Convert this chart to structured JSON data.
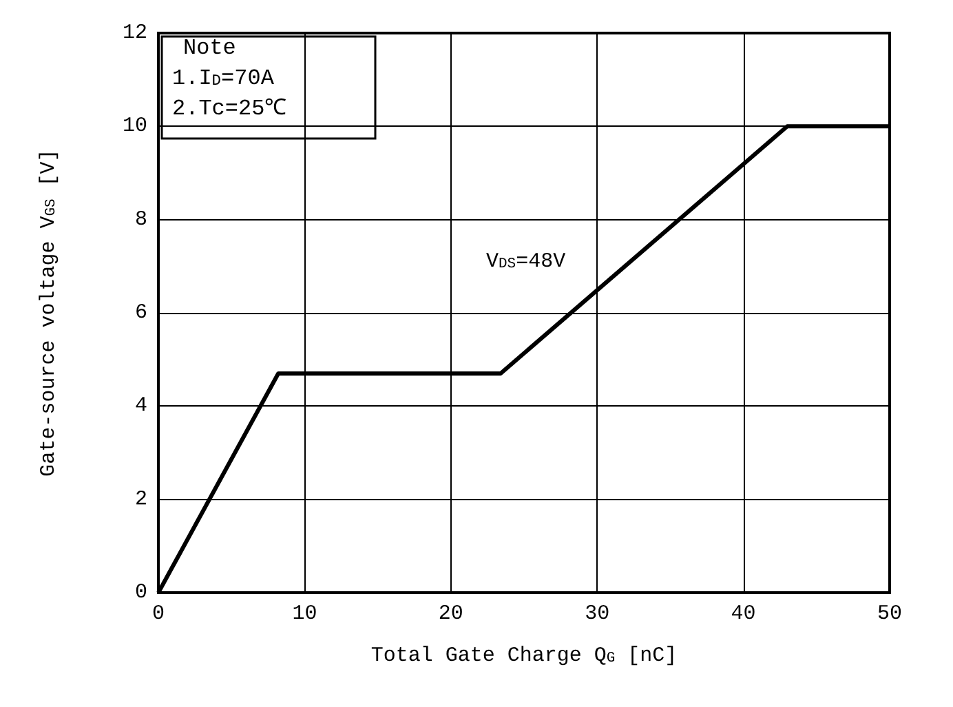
{
  "chart_data": {
    "type": "line",
    "xlabel": "Total Gate Charge Q$_{G}$ [nC]",
    "ylabel": "Gate-source voltage V$_{GS}$ [V]",
    "x": [
      0,
      8.2,
      23.4,
      43,
      50
    ],
    "series": [
      {
        "color": "#000000",
        "values": [
          0,
          4.7,
          4.7,
          10,
          10
        ]
      }
    ],
    "xlim": [
      0,
      50
    ],
    "xticks": [
      0,
      10,
      20,
      30,
      40,
      50
    ],
    "ylim": [
      0,
      12
    ],
    "yticks": [
      0,
      2,
      4,
      6,
      8,
      10,
      12
    ],
    "grid": true,
    "marker": "none",
    "line_style": "solid",
    "annotations": [
      "Note",
      "1.I$_{D}$=70A",
      "2.Tc=25℃",
      "V$_{DS}$=48V"
    ]
  }
}
